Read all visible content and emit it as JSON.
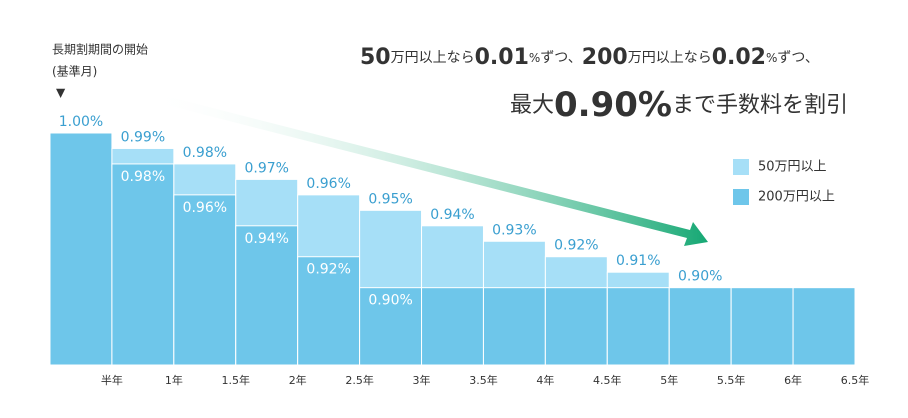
{
  "chart_data": {
    "type": "bar",
    "annotations": {
      "start_label": "長期割期間の開始",
      "start_sub": "(基準月)",
      "start_marker": "▼",
      "headline_1": [
        "50",
        "万円以上なら",
        "0.01",
        "%",
        "ずつ、",
        "200",
        "万円以上なら",
        "0.02",
        "%",
        "ずつ、"
      ],
      "headline_2": [
        "最大",
        "0.90%",
        "まで手数料を割引"
      ]
    },
    "categories": [
      "半年",
      "1年",
      "1.5年",
      "2年",
      "2.5年",
      "3年",
      "3.5年",
      "4年",
      "4.5年",
      "5年",
      "5.5年",
      "6年",
      "6.5年"
    ],
    "series": [
      {
        "name": "50万円以上",
        "color": "#a6dff7",
        "values": [
          1.0,
          0.99,
          0.98,
          0.97,
          0.96,
          0.95,
          0.94,
          0.93,
          0.92,
          0.91,
          0.9,
          0.9,
          0.9
        ],
        "value_labels": [
          null,
          "0.99%",
          "0.98%",
          "0.97%",
          "0.96%",
          "0.95%",
          "0.94%",
          "0.93%",
          "0.92%",
          "0.91%",
          "0.90%",
          null,
          null
        ]
      },
      {
        "name": "200万円以上",
        "color": "#6ec6ea",
        "values": [
          1.0,
          0.98,
          0.96,
          0.94,
          0.92,
          0.9,
          0.9,
          0.9,
          0.9,
          0.9,
          0.9,
          0.9,
          0.9
        ],
        "value_labels": [
          "1.00%",
          "0.98%",
          "0.96%",
          "0.94%",
          "0.92%",
          "0.90%",
          null,
          null,
          null,
          null,
          null,
          null,
          null
        ]
      }
    ],
    "ylim": [
      0.85,
      1.0
    ],
    "legend": "right"
  }
}
